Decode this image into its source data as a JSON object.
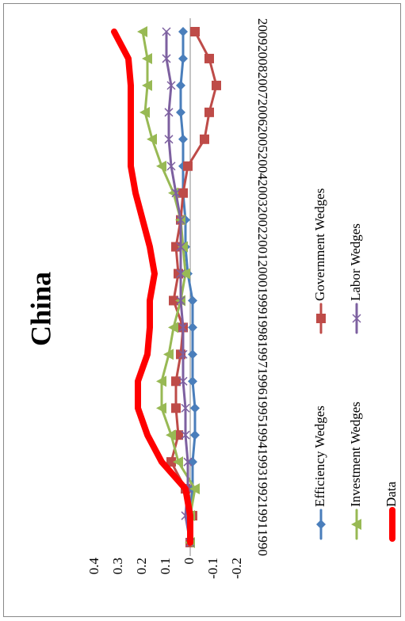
{
  "chart_data": {
    "type": "line",
    "title": "China",
    "categories": [
      "1990",
      "1991",
      "1992",
      "1993",
      "1994",
      "1995",
      "1996",
      "1997",
      "1998",
      "1999",
      "2000",
      "2001",
      "2002",
      "2003",
      "2004",
      "2005",
      "2006",
      "2007",
      "2008",
      "2009"
    ],
    "series": [
      {
        "name": "Efficiency Wedges",
        "color": "#4a7ebb",
        "marker": "diamond",
        "values": [
          0,
          0,
          -0.01,
          -0.01,
          -0.02,
          -0.02,
          -0.01,
          -0.01,
          -0.01,
          -0.01,
          0.01,
          0.02,
          0.02,
          0.03,
          0.03,
          0.03,
          0.04,
          0.04,
          0.03,
          0.03
        ]
      },
      {
        "name": "Government Wedges",
        "color": "#be4b48",
        "marker": "square",
        "values": [
          0,
          -0.01,
          0.02,
          0.08,
          0.05,
          0.06,
          0.06,
          0.04,
          0.03,
          0.07,
          0.05,
          0.06,
          0.04,
          0.03,
          0.01,
          -0.06,
          -0.08,
          -0.11,
          -0.08,
          -0.02
        ]
      },
      {
        "name": "Investment Wedges",
        "color": "#98b954",
        "marker": "triangle",
        "values": [
          0,
          0,
          -0.02,
          0.05,
          0.08,
          0.12,
          0.12,
          0.09,
          0.07,
          0.04,
          0.02,
          0.03,
          0.04,
          0.07,
          0.12,
          0.16,
          0.19,
          0.18,
          0.18,
          0.2
        ]
      },
      {
        "name": "Labor Wedges",
        "color": "#7d60a0",
        "marker": "x",
        "values": [
          0,
          0.02,
          0.01,
          0.01,
          0.02,
          0.02,
          0.03,
          0.03,
          0.03,
          0.04,
          0.04,
          0.04,
          0.04,
          0.06,
          0.08,
          0.09,
          0.09,
          0.08,
          0.1,
          0.1
        ]
      },
      {
        "name": "Data",
        "color": "#ff0000",
        "marker": "none",
        "values": [
          0,
          0,
          0.02,
          0.12,
          0.18,
          0.22,
          0.22,
          0.18,
          0.17,
          0.17,
          0.15,
          0.17,
          0.2,
          0.23,
          0.25,
          0.25,
          0.25,
          0.25,
          0.26,
          0.32
        ]
      }
    ],
    "ylim": [
      -0.2,
      0.4
    ],
    "yticks": [
      0.4,
      0.3,
      0.2,
      0.1,
      0,
      -0.1,
      -0.2
    ],
    "grid": false
  }
}
